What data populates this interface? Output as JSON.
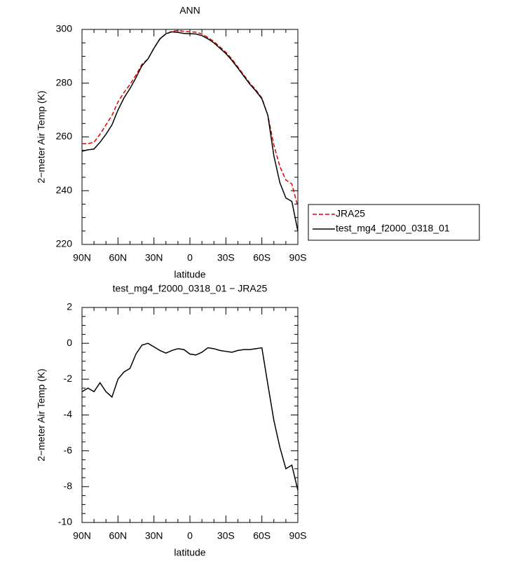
{
  "chart_data": [
    {
      "type": "line",
      "title": "ANN",
      "xlabel": "latitude",
      "ylabel": "2−meter Air Temp (K)",
      "x": [
        90,
        85,
        80,
        75,
        70,
        65,
        60,
        55,
        50,
        45,
        40,
        35,
        30,
        25,
        20,
        15,
        10,
        5,
        0,
        -5,
        -10,
        -15,
        -20,
        -25,
        -30,
        -35,
        -40,
        -45,
        -50,
        -55,
        -60,
        -65,
        -70,
        -75,
        -80,
        -85,
        -90
      ],
      "series": [
        {
          "name": "JRA25",
          "color": "#e00000",
          "dash": true,
          "values": [
            257.5,
            257.5,
            258,
            261,
            264.5,
            268,
            273,
            276.5,
            279.5,
            283,
            287,
            289,
            293,
            296.5,
            298.3,
            299.3,
            299.6,
            299.3,
            299.1,
            299,
            298.3,
            297,
            295.5,
            293.5,
            291.5,
            289,
            286,
            283,
            280,
            277.5,
            274.5,
            268,
            257,
            249,
            244,
            242.5,
            234
          ]
        },
        {
          "name": "test_mg4_f2000_0318_01",
          "color": "#000000",
          "dash": false,
          "values": [
            254.7,
            255.2,
            255.5,
            258,
            261,
            264.5,
            270,
            274.5,
            278,
            282,
            286.5,
            289,
            293,
            296.5,
            298.4,
            299.1,
            298.9,
            298.5,
            298.4,
            298.3,
            297.7,
            296.5,
            295,
            293,
            291,
            288.5,
            285.6,
            282.6,
            279.6,
            277.1,
            274.2,
            268,
            253,
            243,
            237.3,
            236,
            225
          ]
        }
      ],
      "xlim": [
        90,
        -90
      ],
      "xticks": [
        {
          "value": 90,
          "label": "90N"
        },
        {
          "value": 60,
          "label": "60N"
        },
        {
          "value": 30,
          "label": "30N"
        },
        0,
        {
          "value": -30,
          "label": "30S"
        },
        {
          "value": -60,
          "label": "60S"
        },
        {
          "value": -90,
          "label": "90S"
        }
      ],
      "ylim": [
        220,
        300
      ],
      "yticks": [
        220,
        240,
        260,
        280,
        300
      ],
      "legend": "outside right"
    },
    {
      "type": "line",
      "title": "test_mg4_f2000_0318_01 − JRA25",
      "xlabel": "latitude",
      "ylabel": "2−meter Air Temp (K)",
      "x": [
        90,
        85,
        80,
        75,
        70,
        65,
        60,
        55,
        50,
        45,
        40,
        35,
        30,
        25,
        20,
        15,
        10,
        5,
        0,
        -5,
        -10,
        -15,
        -20,
        -25,
        -30,
        -35,
        -40,
        -45,
        -50,
        -55,
        -60,
        -65,
        -70,
        -75,
        -80,
        -85,
        -90
      ],
      "series": [
        {
          "color": "#000000",
          "dash": false,
          "values": [
            -2.7,
            -2.5,
            -2.7,
            -2.2,
            -2.7,
            -3.0,
            -2.0,
            -1.6,
            -1.4,
            -0.6,
            -0.1,
            0,
            -0.2,
            -0.4,
            -0.55,
            -0.4,
            -0.3,
            -0.35,
            -0.6,
            -0.65,
            -0.5,
            -0.25,
            -0.3,
            -0.4,
            -0.45,
            -0.5,
            -0.4,
            -0.35,
            -0.35,
            -0.3,
            -0.25,
            -2.3,
            -4.3,
            -5.8,
            -7.0,
            -6.8,
            -8.2
          ]
        }
      ],
      "xlim": [
        90,
        -90
      ],
      "xticks": [
        {
          "value": 90,
          "label": "90N"
        },
        {
          "value": 60,
          "label": "60N"
        },
        {
          "value": 30,
          "label": "30N"
        },
        0,
        {
          "value": -30,
          "label": "30S"
        },
        {
          "value": -60,
          "label": "60S"
        },
        {
          "value": -90,
          "label": "90S"
        }
      ],
      "ylim": [
        -10,
        2
      ],
      "yticks": [
        -10,
        -8,
        -6,
        -4,
        -2,
        0,
        2
      ]
    }
  ]
}
